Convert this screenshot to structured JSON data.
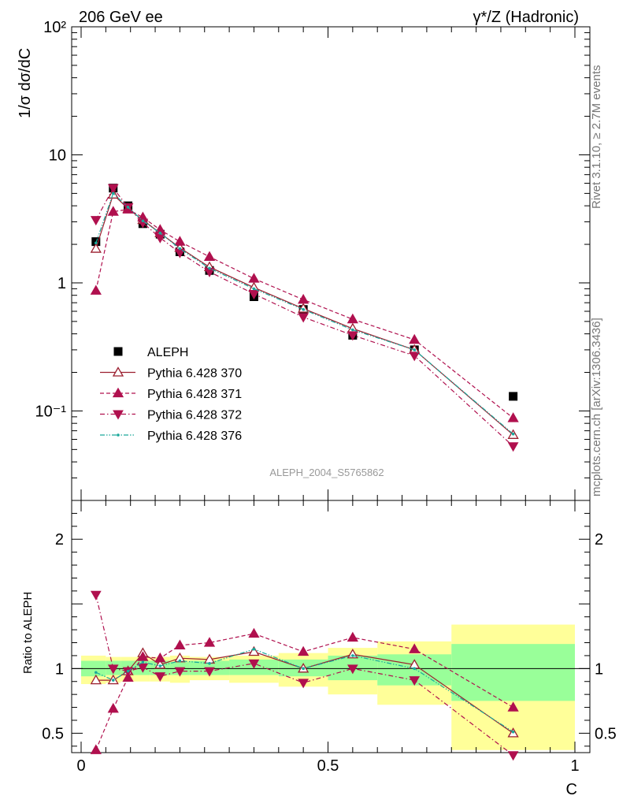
{
  "header": {
    "left": "206 GeV ee",
    "right": "γ*/Z (Hadronic)"
  },
  "side_text": {
    "top": "Rivet 3.1.10, ≥ 2.7M events",
    "bottom": "mcplots.cern.ch [arXiv:1306.3436]"
  },
  "analysis_label": "ALEPH_2004_S5765862",
  "chart_data": [
    {
      "type": "line",
      "ylabel": "1/σ  dσ/dC",
      "xlabel": "",
      "yscale": "log",
      "xlim": [
        0,
        1
      ],
      "ylim": [
        0.02,
        100
      ],
      "y_ticks": [
        {
          "value": 100,
          "label": "10²"
        },
        {
          "value": 10,
          "label": "10"
        },
        {
          "value": 1,
          "label": "1"
        },
        {
          "value": 0.1,
          "label": "10⁻¹"
        }
      ],
      "x": [
        0.03,
        0.065,
        0.095,
        0.125,
        0.16,
        0.2,
        0.26,
        0.35,
        0.45,
        0.55,
        0.675,
        0.875
      ],
      "legend_placement": "bottom-left",
      "series": [
        {
          "name": "ALEPH",
          "color": "#000000",
          "style": "data",
          "values": [
            2.1,
            5.5,
            4.0,
            2.9,
            2.4,
            1.75,
            1.25,
            0.78,
            0.62,
            0.39,
            0.3,
            0.13
          ]
        },
        {
          "name": "Pythia 6.428 370",
          "color": "#9b1f2f",
          "style": "solid",
          "marker": "triangle-up-open",
          "values": [
            1.85,
            4.9,
            3.8,
            3.1,
            2.45,
            1.88,
            1.33,
            0.92,
            0.63,
            0.44,
            0.3,
            0.065
          ]
        },
        {
          "name": "Pythia 6.428 371",
          "color": "#b0104e",
          "style": "dashed",
          "marker": "triangle-up-filled",
          "values": [
            0.87,
            3.6,
            3.75,
            3.25,
            2.6,
            2.1,
            1.6,
            1.08,
            0.74,
            0.52,
            0.36,
            0.088
          ]
        },
        {
          "name": "Pythia 6.428 372",
          "color": "#b0104e",
          "style": "dashdot",
          "marker": "triangle-down-filled",
          "values": [
            3.1,
            5.5,
            3.9,
            2.95,
            2.25,
            1.72,
            1.22,
            0.82,
            0.54,
            0.39,
            0.27,
            0.053
          ]
        },
        {
          "name": "Pythia 6.428 376",
          "color": "#1aa89a",
          "style": "dashdotdot",
          "marker": "dot",
          "values": [
            2.05,
            5.0,
            3.9,
            3.05,
            2.45,
            1.85,
            1.3,
            0.9,
            0.62,
            0.43,
            0.3,
            0.066
          ]
        }
      ]
    },
    {
      "type": "line",
      "ylabel": "Ratio to ALEPH",
      "xlabel": "C",
      "xlim": [
        0,
        1
      ],
      "ylim": [
        0.35,
        2.3
      ],
      "x_ticks": [
        {
          "value": 0,
          "label": "0"
        },
        {
          "value": 0.5,
          "label": "0.5"
        },
        {
          "value": 1,
          "label": "1"
        }
      ],
      "y_ticks": [
        {
          "value": 0.5,
          "label": "0.5"
        },
        {
          "value": 1,
          "label": "1"
        },
        {
          "value": 2,
          "label": "2"
        }
      ],
      "x": [
        0.03,
        0.065,
        0.095,
        0.125,
        0.16,
        0.2,
        0.26,
        0.35,
        0.45,
        0.55,
        0.675,
        0.875
      ],
      "uncertainty_bins": [
        {
          "x0": 0.0,
          "x1": 0.05,
          "stat": [
            0.94,
            1.06
          ],
          "total": [
            0.88,
            1.1
          ]
        },
        {
          "x0": 0.05,
          "x1": 0.08,
          "stat": [
            0.95,
            1.06
          ],
          "total": [
            0.89,
            1.09
          ]
        },
        {
          "x0": 0.08,
          "x1": 0.11,
          "stat": [
            0.95,
            1.06
          ],
          "total": [
            0.9,
            1.09
          ]
        },
        {
          "x0": 0.11,
          "x1": 0.14,
          "stat": [
            0.95,
            1.06
          ],
          "total": [
            0.9,
            1.09
          ]
        },
        {
          "x0": 0.14,
          "x1": 0.18,
          "stat": [
            0.95,
            1.06
          ],
          "total": [
            0.9,
            1.09
          ]
        },
        {
          "x0": 0.18,
          "x1": 0.22,
          "stat": [
            0.95,
            1.05
          ],
          "total": [
            0.89,
            1.1
          ]
        },
        {
          "x0": 0.22,
          "x1": 0.3,
          "stat": [
            0.95,
            1.06
          ],
          "total": [
            0.91,
            1.09
          ]
        },
        {
          "x0": 0.3,
          "x1": 0.4,
          "stat": [
            0.95,
            1.07
          ],
          "total": [
            0.89,
            1.1
          ]
        },
        {
          "x0": 0.4,
          "x1": 0.5,
          "stat": [
            0.94,
            1.07
          ],
          "total": [
            0.86,
            1.12
          ]
        },
        {
          "x0": 0.5,
          "x1": 0.6,
          "stat": [
            0.91,
            1.1
          ],
          "total": [
            0.8,
            1.16
          ]
        },
        {
          "x0": 0.6,
          "x1": 0.75,
          "stat": [
            0.87,
            1.11
          ],
          "total": [
            0.72,
            1.21
          ]
        },
        {
          "x0": 0.75,
          "x1": 1.0,
          "stat": [
            0.75,
            1.19
          ],
          "total": [
            0.37,
            1.34
          ]
        }
      ],
      "series": [
        {
          "name": "Pythia 6.428 370",
          "color": "#9b1f2f",
          "values": [
            0.91,
            0.91,
            0.98,
            1.12,
            1.03,
            1.08,
            1.07,
            1.13,
            1.0,
            1.11,
            1.03,
            0.5
          ]
        },
        {
          "name": "Pythia 6.428 371",
          "color": "#b0104e",
          "values": [
            0.37,
            0.69,
            0.93,
            1.09,
            1.08,
            1.18,
            1.2,
            1.27,
            1.13,
            1.24,
            1.15,
            0.7
          ]
        },
        {
          "name": "Pythia 6.428 372",
          "color": "#b0104e",
          "values": [
            1.57,
            1.0,
            0.98,
            1.01,
            0.94,
            0.98,
            0.98,
            1.04,
            0.89,
            1.0,
            0.91,
            0.33
          ]
        },
        {
          "name": "Pythia 6.428 376",
          "color": "#1aa89a",
          "values": [
            0.97,
            0.91,
            0.98,
            1.05,
            1.02,
            1.06,
            1.04,
            1.15,
            1.0,
            1.1,
            1.0,
            0.51
          ]
        }
      ],
      "colors": {
        "stat_band": "#99ff99",
        "total_band": "#ffff99"
      }
    }
  ]
}
